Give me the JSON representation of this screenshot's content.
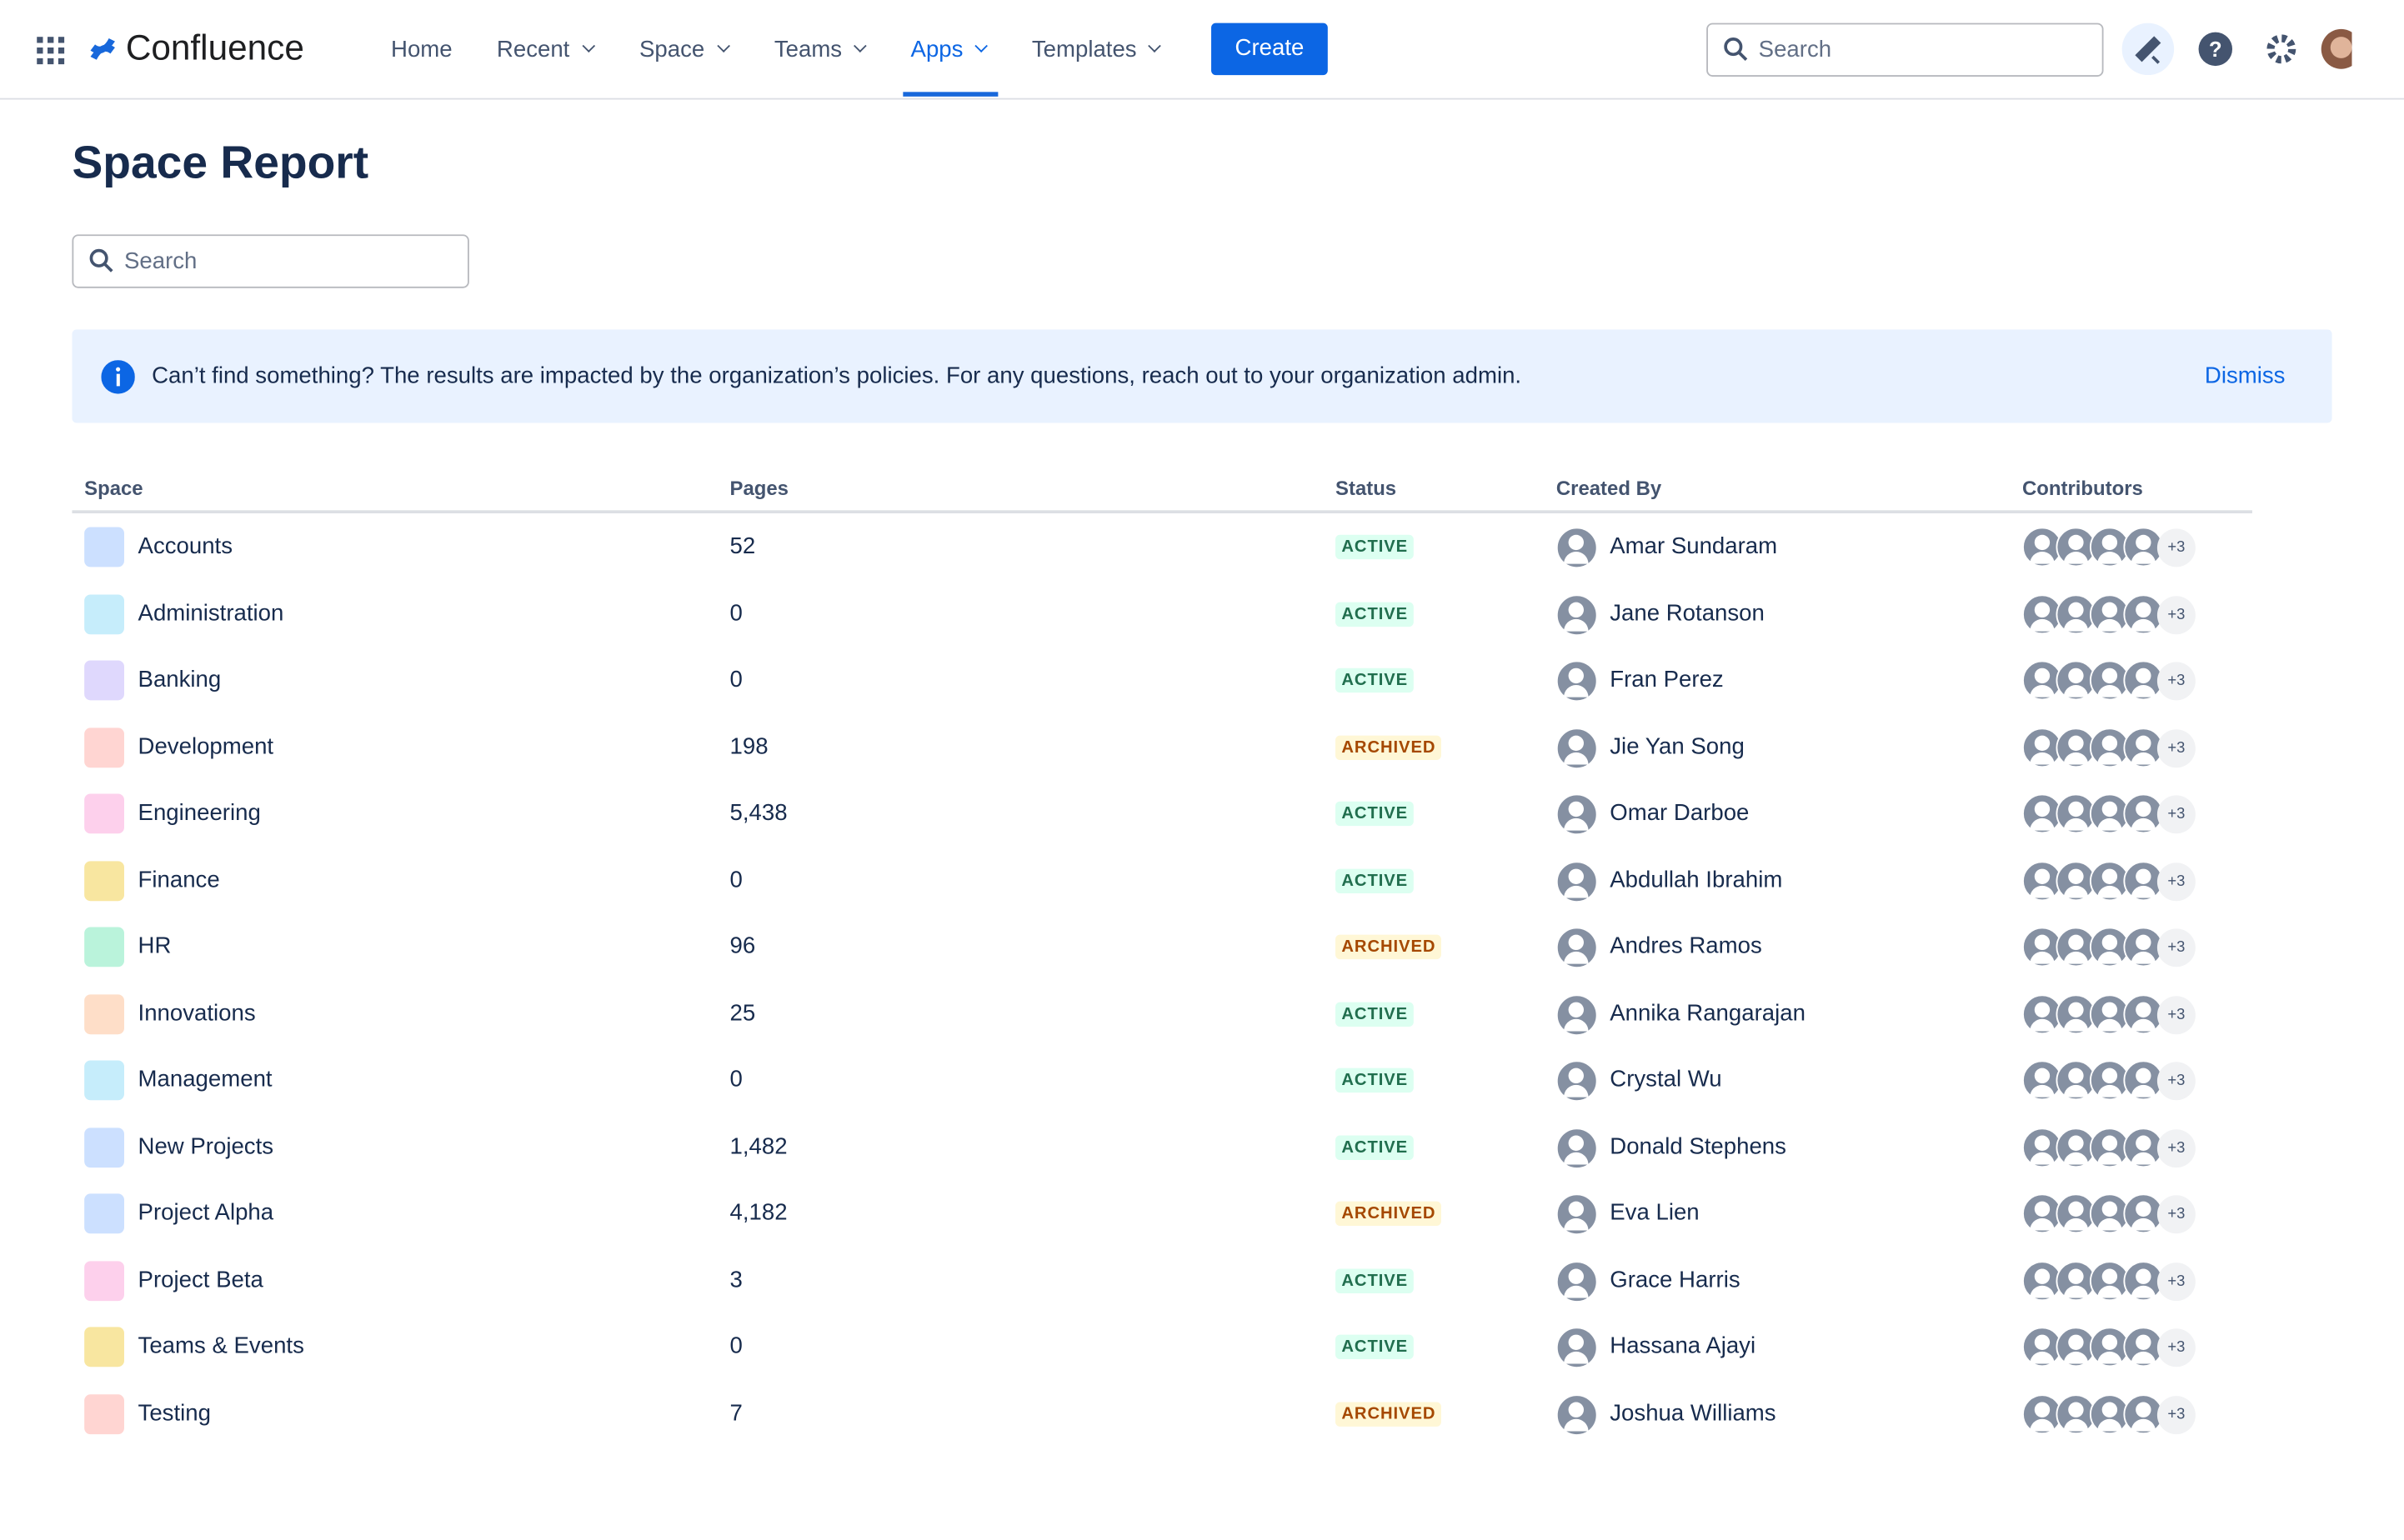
{
  "nav": {
    "product": "Confluence",
    "items": [
      "Home",
      "Recent",
      "Space",
      "Teams",
      "Apps",
      "Templates"
    ],
    "create": "Create",
    "search": "Search"
  },
  "title": "Space Report",
  "search": "Search",
  "banner": {
    "text": "Can’t find something? The results are impacted by the organization’s policies. For any questions, reach out to your organization admin.",
    "action": "Dismiss"
  },
  "table": {
    "headers": [
      "Space",
      "Pages",
      "Status",
      "Created By",
      "Contributors"
    ],
    "rows": [
      [
        "Accounts",
        "52",
        "ACTIVE",
        "Amar Sundaram",
        "+3"
      ],
      [
        "Administration",
        "0",
        "ACTIVE",
        "Jane Rotanson",
        "+3"
      ],
      [
        "Banking",
        "0",
        "ACTIVE",
        "Fran Perez",
        "+3"
      ],
      [
        "Development",
        "198",
        "ARCHIVED",
        "Jie Yan Song",
        "+3"
      ],
      [
        "Engineering",
        "5,438",
        "ACTIVE",
        "Omar Darboe",
        "+3"
      ],
      [
        "Finance",
        "0",
        "ACTIVE",
        "Abdullah Ibrahim",
        "+3"
      ],
      [
        "HR",
        "96",
        "ARCHIVED",
        "Andres Ramos",
        "+3"
      ],
      [
        "Innovations",
        "25",
        "ACTIVE",
        "Annika Rangarajan",
        "+3"
      ],
      [
        "Management",
        "0",
        "ACTIVE",
        "Crystal Wu",
        "+3"
      ],
      [
        "New Projects",
        "1,482",
        "ACTIVE",
        "Donald Stephens",
        "+3"
      ],
      [
        "Project Alpha",
        "4,182",
        "ARCHIVED",
        "Eva Lien",
        "+3"
      ],
      [
        "Project Beta",
        "3",
        "ACTIVE",
        "Grace Harris",
        "+3"
      ],
      [
        "Teams & Events",
        "0",
        "ACTIVE",
        "Hassana Ajayi",
        "+3"
      ],
      [
        "Testing",
        "7",
        "ARCHIVED",
        "Joshua Williams",
        "+3"
      ]
    ]
  }
}
